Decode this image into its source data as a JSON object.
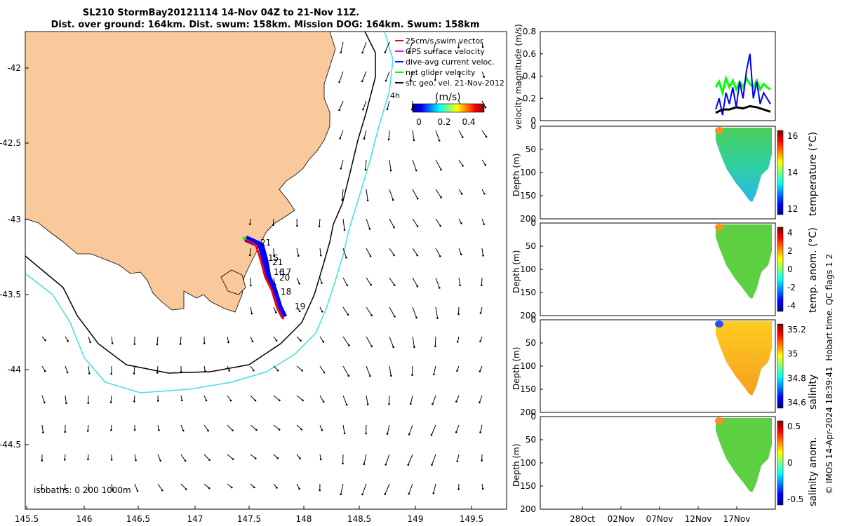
{
  "header": {
    "title_line1": "SL210 StormBay20121114 14-Nov 04Z to 21-Nov 11Z.",
    "title_line2": "Dist. over ground: 164km. Dist. swum: 158km. Mission DOG: 164km. Swum: 158km"
  },
  "colors": {
    "land": "#f9c89b",
    "isobath_200": "#000000",
    "isobath_1000": "#40e0e0",
    "swim_vector": "#ff0000",
    "gps_velocity": "#ff00ff",
    "dive_avg_current": "#0000ff",
    "net_glider_velocity": "#00ff00",
    "sfc_geo_vel": "#000000"
  },
  "map": {
    "x_ticks": [
      "145.5",
      "146",
      "146.5",
      "147",
      "147.5",
      "148",
      "148.5",
      "149",
      "149.5"
    ],
    "y_ticks": [
      "-42",
      "-42.5",
      "-43",
      "-43.5",
      "-44",
      "-44.5"
    ],
    "legend": [
      {
        "label": "25cm/s swim vector",
        "color": "#ff0000"
      },
      {
        "label": "GPS surface velocity",
        "color": "#ff00ff"
      },
      {
        "label": "dive-avg current veloc.",
        "color": "#0000ff"
      },
      {
        "label": "net glider velocity",
        "color": "#00ff00"
      },
      {
        "label": "sfc geo. vel. 21-Nov-2012",
        "color": "#000000"
      }
    ],
    "time_label": "4h",
    "colorbar_title": "(m/s)",
    "colorbar_ticks": [
      "0",
      "0.2",
      "0.4"
    ],
    "day_labels": [
      "21",
      "15",
      "21",
      "16",
      "17",
      "20",
      "18",
      "19"
    ],
    "isobath_note": "isobaths: 0   200  1000m"
  },
  "panels": {
    "velocity": {
      "ylabel": "velocity magnitude (m/s)",
      "y_ticks": [
        "0",
        "0.2",
        "0.4",
        "0.6",
        "0.8"
      ]
    },
    "temperature": {
      "ylabel": "Depth (m)",
      "cbar_label": "temperature (°C)",
      "cbar_ticks": [
        "16",
        "14",
        "12"
      ]
    },
    "temp_anom": {
      "ylabel": "Depth (m)",
      "cbar_label": "temp. anom. (°C)",
      "cbar_ticks": [
        "4",
        "2",
        "0",
        "-2",
        "-4"
      ]
    },
    "salinity": {
      "ylabel": "Depth (m)",
      "cbar_label": "salinity",
      "cbar_ticks": [
        "35.2",
        "35",
        "34.8",
        "34.6"
      ]
    },
    "sal_anom": {
      "ylabel": "Depth (m)",
      "cbar_label": "salinity anom.",
      "cbar_ticks": [
        "0.5",
        "0",
        "-0.5"
      ]
    },
    "depth_ticks": [
      "0",
      "50",
      "100",
      "150",
      "200"
    ],
    "x_ticks": [
      "28Oct",
      "02Nov",
      "07Nov",
      "12Nov",
      "17Nov"
    ]
  },
  "footer": {
    "qc_text": "Hobart time. QC flags 1  2",
    "credit": "© IMOS 14-Apr-2024 18:39:41"
  },
  "chart_data": [
    {
      "type": "scatter",
      "name_hint": "map",
      "xlabel": "",
      "ylabel": "",
      "xlim": [
        145.5,
        149.85
      ],
      "ylim": [
        -44.9,
        -41.8
      ],
      "track": [
        [
          147.45,
          -43.13
        ],
        [
          147.5,
          -43.16
        ],
        [
          147.55,
          -43.19
        ],
        [
          147.58,
          -43.25
        ],
        [
          147.6,
          -43.3
        ],
        [
          147.63,
          -43.36
        ],
        [
          147.66,
          -43.42
        ],
        [
          147.7,
          -43.48
        ],
        [
          147.74,
          -43.53
        ],
        [
          147.77,
          -43.58
        ],
        [
          147.8,
          -43.62
        ],
        [
          147.83,
          -43.65
        ]
      ]
    },
    {
      "type": "line",
      "name_hint": "velocity magnitude",
      "xlabel": "",
      "ylabel": "velocity magnitude (m/s)",
      "ylim": [
        0,
        0.8
      ],
      "series": [
        {
          "name": "dive-avg current veloc.",
          "x": [
            13.5,
            14,
            14.5,
            15,
            15.5,
            16,
            16.5,
            17,
            17.5,
            18,
            18.5,
            19,
            19.5,
            20,
            20.5,
            21,
            21.5
          ],
          "y": [
            0.1,
            0.2,
            0.05,
            0.25,
            0.15,
            0.3,
            0.12,
            0.35,
            0.2,
            0.45,
            0.6,
            0.2,
            0.35,
            0.15,
            0.25,
            0.2,
            0.15
          ]
        },
        {
          "name": "net glider velocity",
          "x": [
            13.5,
            14,
            14.5,
            15,
            15.5,
            16,
            16.5,
            17,
            17.5,
            18,
            18.5,
            19,
            19.5,
            20,
            20.5,
            21,
            21.5
          ],
          "y": [
            0.3,
            0.35,
            0.25,
            0.38,
            0.3,
            0.36,
            0.28,
            0.35,
            0.3,
            0.38,
            0.33,
            0.3,
            0.36,
            0.28,
            0.33,
            0.3,
            0.28
          ]
        },
        {
          "name": "sfc geo. vel. 21-Nov-2012",
          "x": [
            13.5,
            14.5,
            15.5,
            16.5,
            17.5,
            18.5,
            19.5,
            20.5,
            21.5
          ],
          "y": [
            0.07,
            0.1,
            0.1,
            0.12,
            0.11,
            0.13,
            0.12,
            0.1,
            0.08
          ]
        }
      ]
    }
  ]
}
